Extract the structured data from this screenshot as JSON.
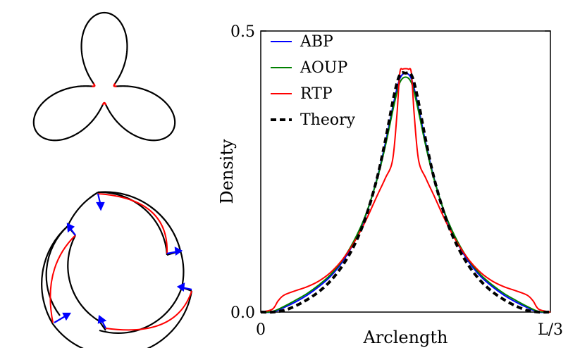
{
  "chart_data": {
    "type": "line",
    "xlabel": "Arclength",
    "ylabel": "Density",
    "xlim": [
      0,
      1
    ],
    "ylim": [
      0,
      0.5
    ],
    "x_ticks": [
      {
        "value": 0,
        "label": "0"
      },
      {
        "value": 1,
        "label": "L/3"
      }
    ],
    "y_ticks": [
      {
        "value": 0.0,
        "label": "0.0"
      },
      {
        "value": 0.5,
        "label": "0.5"
      }
    ],
    "legend_position": "top-left",
    "series": [
      {
        "name": "ABP",
        "color": "#0000ff",
        "style": "solid",
        "x": [
          0.0,
          0.04,
          0.08,
          0.12,
          0.16,
          0.2,
          0.24,
          0.28,
          0.32,
          0.36,
          0.4,
          0.43,
          0.46,
          0.48,
          0.5,
          0.52,
          0.54,
          0.57,
          0.6,
          0.64,
          0.68,
          0.72,
          0.76,
          0.8,
          0.84,
          0.88,
          0.92,
          0.96,
          1.0
        ],
        "y": [
          0.0,
          0.0,
          0.008,
          0.018,
          0.03,
          0.045,
          0.063,
          0.088,
          0.122,
          0.168,
          0.235,
          0.3,
          0.375,
          0.415,
          0.425,
          0.415,
          0.375,
          0.3,
          0.235,
          0.168,
          0.122,
          0.088,
          0.063,
          0.045,
          0.03,
          0.018,
          0.008,
          0.0,
          0.0
        ]
      },
      {
        "name": "AOUP",
        "color": "#008000",
        "style": "solid",
        "x": [
          0.0,
          0.04,
          0.08,
          0.12,
          0.16,
          0.2,
          0.24,
          0.28,
          0.32,
          0.36,
          0.4,
          0.43,
          0.46,
          0.48,
          0.5,
          0.52,
          0.54,
          0.57,
          0.6,
          0.64,
          0.68,
          0.72,
          0.76,
          0.8,
          0.84,
          0.88,
          0.92,
          0.96,
          1.0
        ],
        "y": [
          0.0,
          0.001,
          0.01,
          0.021,
          0.033,
          0.048,
          0.066,
          0.091,
          0.125,
          0.17,
          0.233,
          0.295,
          0.368,
          0.408,
          0.418,
          0.408,
          0.368,
          0.295,
          0.233,
          0.17,
          0.125,
          0.091,
          0.066,
          0.048,
          0.033,
          0.021,
          0.01,
          0.001,
          0.0
        ]
      },
      {
        "name": "RTP",
        "color": "#ff0000",
        "style": "solid",
        "x": [
          0.0,
          0.04,
          0.06,
          0.08,
          0.12,
          0.16,
          0.2,
          0.24,
          0.28,
          0.32,
          0.36,
          0.4,
          0.43,
          0.455,
          0.47,
          0.48,
          0.49,
          0.5,
          0.51,
          0.52,
          0.53,
          0.545,
          0.57,
          0.6,
          0.64,
          0.68,
          0.72,
          0.76,
          0.8,
          0.84,
          0.88,
          0.92,
          0.94,
          0.96,
          1.0
        ],
        "y": [
          0.0,
          0.005,
          0.02,
          0.03,
          0.038,
          0.045,
          0.055,
          0.07,
          0.092,
          0.122,
          0.16,
          0.205,
          0.238,
          0.27,
          0.35,
          0.425,
          0.432,
          0.433,
          0.432,
          0.425,
          0.35,
          0.27,
          0.238,
          0.205,
          0.16,
          0.122,
          0.092,
          0.07,
          0.055,
          0.045,
          0.038,
          0.03,
          0.02,
          0.005,
          0.0
        ]
      },
      {
        "name": "Theory",
        "color": "#000000",
        "style": "dashed",
        "x": [
          0.0,
          0.04,
          0.08,
          0.12,
          0.16,
          0.2,
          0.24,
          0.28,
          0.32,
          0.36,
          0.4,
          0.43,
          0.46,
          0.48,
          0.5,
          0.52,
          0.54,
          0.57,
          0.6,
          0.64,
          0.68,
          0.72,
          0.76,
          0.8,
          0.84,
          0.88,
          0.92,
          0.96,
          1.0
        ],
        "y": [
          0.0,
          0.0,
          0.003,
          0.011,
          0.022,
          0.036,
          0.055,
          0.081,
          0.116,
          0.165,
          0.235,
          0.305,
          0.385,
          0.422,
          0.425,
          0.422,
          0.385,
          0.305,
          0.235,
          0.165,
          0.116,
          0.081,
          0.055,
          0.036,
          0.022,
          0.011,
          0.003,
          0.0,
          0.0
        ]
      }
    ]
  },
  "schematics": {
    "top": {
      "type": "trefoil-boundary",
      "lobes": 3,
      "outline_color": "#000000",
      "highlight_color": "#ff0000"
    },
    "bottom": {
      "type": "trapped-orbit-diagram",
      "arms": 3,
      "outline_color": "#000000",
      "path_color": "#ff0000",
      "arrow_color": "#0000ff"
    }
  }
}
